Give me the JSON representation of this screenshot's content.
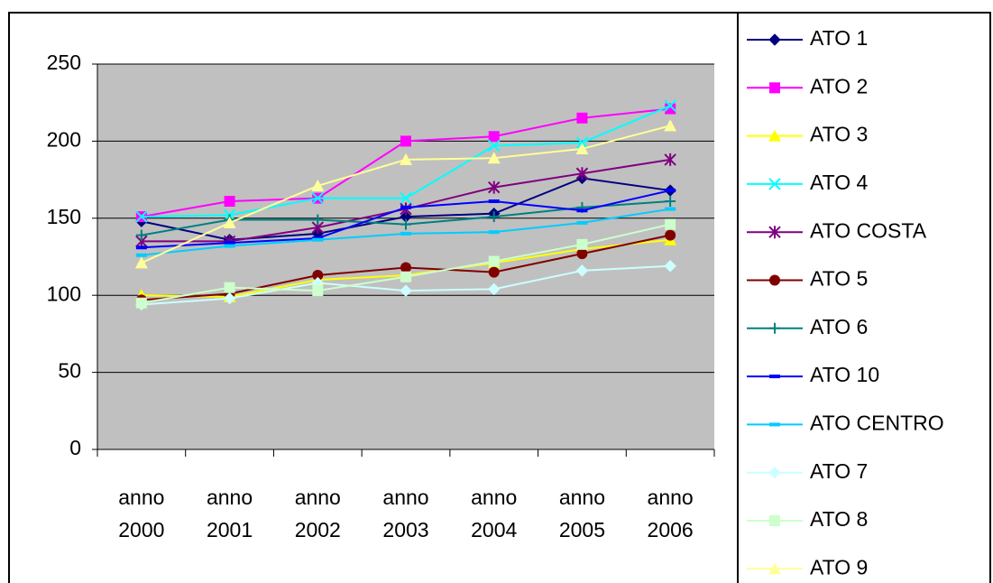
{
  "chart_data": {
    "type": "line",
    "categories": [
      "anno 2000",
      "anno 2001",
      "anno 2002",
      "anno 2003",
      "anno 2004",
      "anno 2005",
      "anno 2006"
    ],
    "ylim": [
      0,
      250
    ],
    "yticks": [
      0,
      50,
      100,
      150,
      200,
      250
    ],
    "grid": true,
    "series": [
      {
        "name": "ATO 1",
        "color": "#000080",
        "marker": "diamond",
        "values": [
          148,
          136,
          140,
          151,
          153,
          176,
          168
        ]
      },
      {
        "name": "ATO 2",
        "color": "#ff00ff",
        "marker": "square",
        "values": [
          151,
          161,
          163,
          200,
          203,
          215,
          221
        ]
      },
      {
        "name": "ATO 3",
        "color": "#ffff00",
        "marker": "triangle",
        "values": [
          100,
          99,
          110,
          113,
          121,
          130,
          136
        ]
      },
      {
        "name": "ATO 4",
        "color": "#00ffff",
        "marker": "x",
        "values": [
          151,
          152,
          163,
          163,
          197,
          199,
          223
        ]
      },
      {
        "name": "ATO COSTA",
        "color": "#800080",
        "marker": "star",
        "values": [
          135,
          135,
          144,
          156,
          170,
          179,
          188
        ]
      },
      {
        "name": "ATO 5",
        "color": "#800000",
        "marker": "circle",
        "values": [
          97,
          101,
          113,
          118,
          115,
          127,
          139
        ]
      },
      {
        "name": "ATO 6",
        "color": "#008080",
        "marker": "plus",
        "values": [
          139,
          149,
          149,
          146,
          151,
          157,
          161
        ]
      },
      {
        "name": "ATO 10",
        "color": "#0000ff",
        "marker": "dash",
        "values": [
          131,
          134,
          137,
          157,
          161,
          155,
          168
        ]
      },
      {
        "name": "ATO CENTRO",
        "color": "#00ccff",
        "marker": "dash",
        "values": [
          126,
          132,
          136,
          140,
          141,
          147,
          156
        ]
      },
      {
        "name": "ATO 7",
        "color": "#ccffff",
        "marker": "diamond",
        "values": [
          94,
          98,
          108,
          103,
          104,
          116,
          119
        ]
      },
      {
        "name": "ATO 8",
        "color": "#ccffcc",
        "marker": "square",
        "values": [
          95,
          105,
          103,
          112,
          122,
          133,
          146
        ]
      },
      {
        "name": "ATO 9",
        "color": "#ffff99",
        "marker": "triangle",
        "values": [
          121,
          147,
          171,
          188,
          189,
          195,
          210
        ]
      }
    ]
  }
}
